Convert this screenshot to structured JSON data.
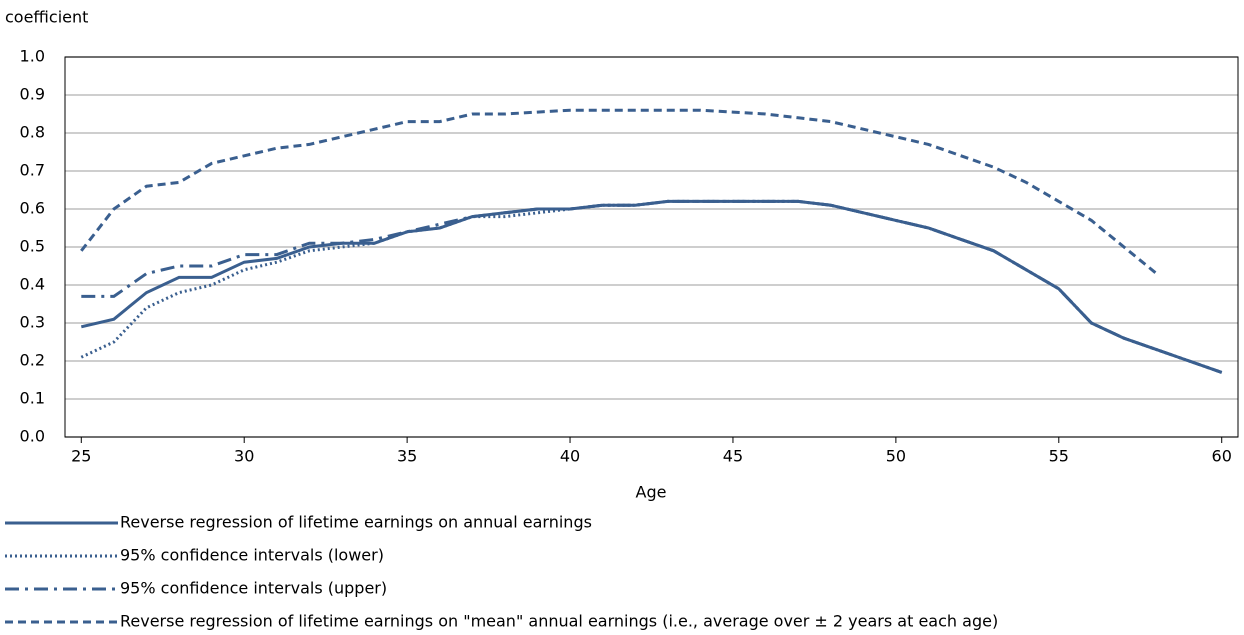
{
  "chart_data": {
    "type": "line",
    "y_label": "coefficient",
    "x_label": "Age",
    "x": [
      25,
      26,
      27,
      28,
      29,
      30,
      31,
      32,
      33,
      34,
      35,
      36,
      37,
      38,
      39,
      40,
      41,
      42,
      43,
      44,
      45,
      46,
      47,
      48,
      49,
      50,
      51,
      52,
      53,
      54,
      55,
      56,
      57,
      58,
      59,
      60
    ],
    "xlim": [
      24.5,
      60.5
    ],
    "xticks": [
      25,
      30,
      35,
      40,
      45,
      50,
      55,
      60
    ],
    "ylim": [
      0,
      1
    ],
    "yticks": [
      {
        "value": 0,
        "label": "0.0"
      },
      0.1,
      0.2,
      0.3,
      0.4,
      0.5,
      0.6,
      0.7,
      0.8,
      0.9,
      {
        "value": 1,
        "label": "1.0"
      }
    ],
    "grid": true,
    "legend": "bottom",
    "series": [
      {
        "name": "Reverse regression of lifetime earnings on annual earnings",
        "color": "#3a5f8f",
        "dash": "solid",
        "values": [
          0.29,
          0.31,
          0.38,
          0.42,
          0.42,
          0.46,
          0.47,
          0.5,
          0.51,
          0.51,
          0.54,
          0.55,
          0.58,
          0.59,
          0.6,
          0.6,
          0.61,
          0.61,
          0.62,
          0.62,
          0.62,
          0.62,
          0.62,
          0.61,
          0.59,
          0.57,
          0.55,
          0.52,
          0.49,
          0.44,
          0.39,
          0.3,
          0.26,
          0.23,
          0.2,
          0.17
        ]
      },
      {
        "name": "95% confidence intervals (lower)",
        "color": "#3a5f8f",
        "dash": "dotted",
        "values": [
          0.21,
          0.25,
          0.34,
          0.38,
          0.4,
          0.44,
          0.46,
          0.49,
          0.5,
          0.51,
          0.54,
          0.55,
          0.58,
          0.58,
          0.59,
          0.6,
          0.61,
          0.61,
          0.62,
          0.62,
          0.62,
          0.62,
          0.62,
          0.61,
          0.59,
          0.57,
          0.55,
          0.52,
          0.49,
          0.44,
          0.39,
          0.3,
          0.26,
          0.23,
          0.2,
          0.17
        ]
      },
      {
        "name": "95% confidence intervals (upper)",
        "color": "#3a5f8f",
        "dash": "dash-dot",
        "values": [
          0.37,
          0.37,
          0.43,
          0.45,
          0.45,
          0.48,
          0.48,
          0.51,
          0.51,
          0.52,
          0.54,
          0.56,
          0.58,
          0.59,
          0.6,
          0.6,
          0.61,
          0.61,
          0.62,
          0.62,
          0.62,
          0.62,
          0.62,
          0.61,
          0.59,
          0.57,
          0.55,
          0.52,
          0.49,
          0.44,
          0.39,
          0.3,
          0.26,
          0.23,
          0.2,
          0.17
        ]
      },
      {
        "name": "Reverse regression of lifetime earnings on \"mean\" annual earnings (i.e., average over ± 2 years at each age)",
        "color": "#3a5f8f",
        "dash": "dashed",
        "values": [
          0.49,
          0.6,
          0.66,
          0.67,
          0.72,
          0.74,
          0.76,
          0.77,
          0.79,
          0.81,
          0.83,
          0.83,
          0.85,
          0.85,
          0.855,
          0.86,
          0.86,
          0.86,
          0.86,
          0.86,
          0.855,
          0.85,
          0.84,
          0.83,
          0.81,
          0.79,
          0.77,
          0.74,
          0.71,
          0.67,
          0.62,
          0.57,
          0.5,
          0.43,
          null,
          null
        ]
      }
    ]
  }
}
